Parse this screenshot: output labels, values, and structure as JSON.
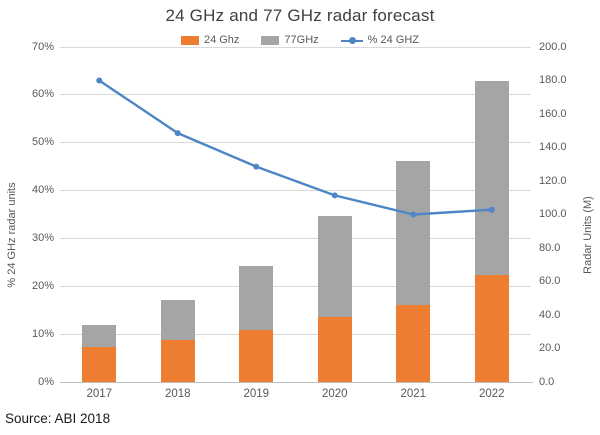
{
  "chart_data": {
    "type": "combo",
    "subtypes": [
      "stacked-bar",
      "line"
    ],
    "title": "24 GHz and 77 GHz radar forecast",
    "categories": [
      "2017",
      "2018",
      "2019",
      "2020",
      "2021",
      "2022"
    ],
    "bar_series": [
      {
        "name": "24 Ghz",
        "color": "#ED7D31",
        "axis": "right",
        "values": [
          21,
          25,
          31,
          39,
          46,
          64
        ]
      },
      {
        "name": "77GHz",
        "color": "#A5A5A5",
        "axis": "right",
        "values": [
          13,
          24,
          38,
          60,
          86,
          116
        ]
      }
    ],
    "line_series": {
      "name": "% 24 GHZ",
      "color": "#4E86C5",
      "axis": "left",
      "values": [
        63,
        52,
        45,
        39,
        35,
        36
      ]
    },
    "stacked": true,
    "legend_position": "top",
    "grid": "horizontal",
    "left_axis": {
      "title": "% 24 GHz radar units",
      "min": 0,
      "max": 70,
      "step": 10,
      "tick_labels": [
        "0%",
        "10%",
        "20%",
        "30%",
        "40%",
        "50%",
        "60%",
        "70%"
      ]
    },
    "right_axis": {
      "title": "Radar Units (M)",
      "min": 0,
      "max": 200,
      "step": 20,
      "tick_labels": [
        "0.0",
        "20.0",
        "40.0",
        "60.0",
        "80.0",
        "100.0",
        "120.0",
        "140.0",
        "160.0",
        "180.0",
        "200.0"
      ]
    },
    "source": "Source: ABI 2018",
    "colors": {
      "gridline": "#D9D9D9",
      "axis_line": "#BFBFBF",
      "tick_text": "#595959",
      "title_text": "#404040",
      "source_text": "#1A1A1A",
      "background": "#FFFFFF"
    }
  }
}
